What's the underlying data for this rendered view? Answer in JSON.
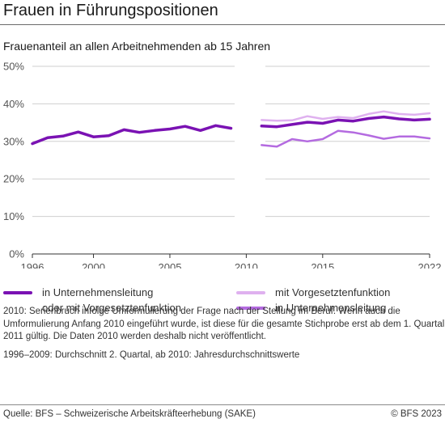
{
  "header": {
    "title": "Frauen in Führungspositionen",
    "subtitle": "Frauenanteil an allen Arbeitnehmenden ab 15 Jahren"
  },
  "legend": {
    "item1_line1": "in Unternehmensleitung",
    "item1_line2": "oder mit Vorgesetztenfunktion",
    "item2": "mit Vorgesetztenfunktion",
    "item3": "in Unternehmensleitung"
  },
  "notes": {
    "note1": "2010: Serienbruch infolge Umformulierung der Frage nach der Stellung im Beruf. Wenn auch die Umformulierung Anfang 2010 eingeführt wurde, ist diese für die gesamte Stichprobe erst ab dem 1. Quartal 2011 gültig. Die Daten 2010 werden deshalb nicht veröffentlicht.",
    "note2": "1996–2009: Durchschnitt 2. Quartal, ab 2010: Jahresdurchschnittswerte"
  },
  "footer": {
    "source": "Quelle: BFS – Schweizerische Arbeitskräfteerhebung (SAKE)",
    "copyright": "© BFS 2023"
  },
  "colors": {
    "main_series": "#7a12b3",
    "light_series": "#dfb1ef",
    "mid_series": "#b46be0",
    "grid": "#cfcfcf",
    "axis": "#333333"
  },
  "chart_data": {
    "type": "line",
    "title": "Frauen in Führungspositionen",
    "subtitle": "Frauenanteil an allen Arbeitnehmenden ab 15 Jahren",
    "xlim": [
      1996,
      2022
    ],
    "ylim": [
      0,
      50
    ],
    "x_ticks": [
      1996,
      2000,
      2005,
      2010,
      2015,
      2022
    ],
    "x_tick_labels": [
      "1996",
      "2000",
      "2005",
      "2010",
      "2015",
      "2022"
    ],
    "y_ticks": [
      0,
      10,
      20,
      30,
      40,
      50
    ],
    "y_tick_labels": [
      "0%",
      "10%",
      "20%",
      "30%",
      "40%",
      "50%"
    ],
    "grid": true,
    "legend_position": "bottom",
    "series": [
      {
        "name": "in Unternehmensleitung oder mit Vorgesetztenfunktion",
        "color": "#7a12b3",
        "points": [
          [
            1996,
            29.4
          ],
          [
            1997,
            31.0
          ],
          [
            1998,
            31.4
          ],
          [
            1999,
            32.5
          ],
          [
            2000,
            31.2
          ],
          [
            2001,
            31.5
          ],
          [
            2002,
            33.1
          ],
          [
            2003,
            32.4
          ],
          [
            2004,
            32.9
          ],
          [
            2005,
            33.3
          ],
          [
            2006,
            34.0
          ],
          [
            2007,
            32.9
          ],
          [
            2008,
            34.2
          ],
          [
            2009,
            33.5
          ],
          null,
          [
            2011,
            34.1
          ],
          [
            2012,
            33.9
          ],
          [
            2013,
            34.5
          ],
          [
            2014,
            35.1
          ],
          [
            2015,
            34.8
          ],
          [
            2016,
            35.7
          ],
          [
            2017,
            35.4
          ],
          [
            2018,
            36.1
          ],
          [
            2019,
            36.5
          ],
          [
            2020,
            36.0
          ],
          [
            2021,
            35.7
          ],
          [
            2022,
            35.9
          ]
        ]
      },
      {
        "name": "mit Vorgesetztenfunktion",
        "color": "#dfb1ef",
        "points": [
          [
            2011,
            35.7
          ],
          [
            2012,
            35.5
          ],
          [
            2013,
            35.6
          ],
          [
            2014,
            36.7
          ],
          [
            2015,
            36.0
          ],
          [
            2016,
            36.5
          ],
          [
            2017,
            36.2
          ],
          [
            2018,
            37.3
          ],
          [
            2019,
            38.0
          ],
          [
            2020,
            37.3
          ],
          [
            2021,
            37.1
          ],
          [
            2022,
            37.5
          ]
        ]
      },
      {
        "name": "in Unternehmensleitung",
        "color": "#b46be0",
        "points": [
          [
            2011,
            29.0
          ],
          [
            2012,
            28.6
          ],
          [
            2013,
            30.6
          ],
          [
            2014,
            30.0
          ],
          [
            2015,
            30.6
          ],
          [
            2016,
            32.8
          ],
          [
            2017,
            32.4
          ],
          [
            2018,
            31.6
          ],
          [
            2019,
            30.7
          ],
          [
            2020,
            31.3
          ],
          [
            2021,
            31.3
          ],
          [
            2022,
            30.8
          ]
        ]
      }
    ]
  }
}
